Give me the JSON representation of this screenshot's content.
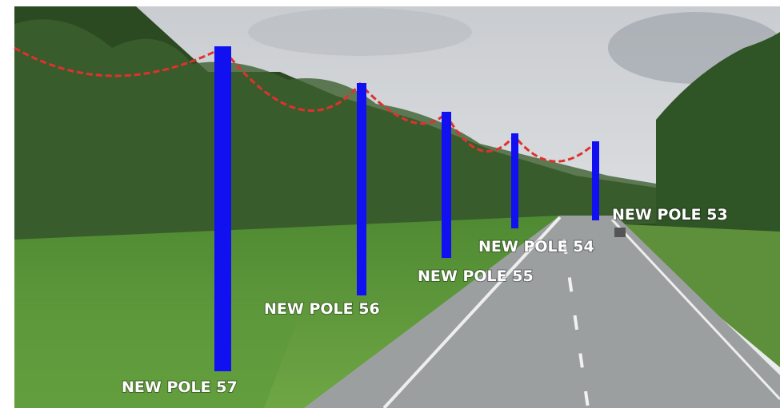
{
  "poles": [
    {
      "label": "NEW POLE 57"
    },
    {
      "label": "NEW POLE 56"
    },
    {
      "label": "NEW POLE 55"
    },
    {
      "label": "NEW POLE 54"
    },
    {
      "label": "NEW POLE 53"
    }
  ]
}
